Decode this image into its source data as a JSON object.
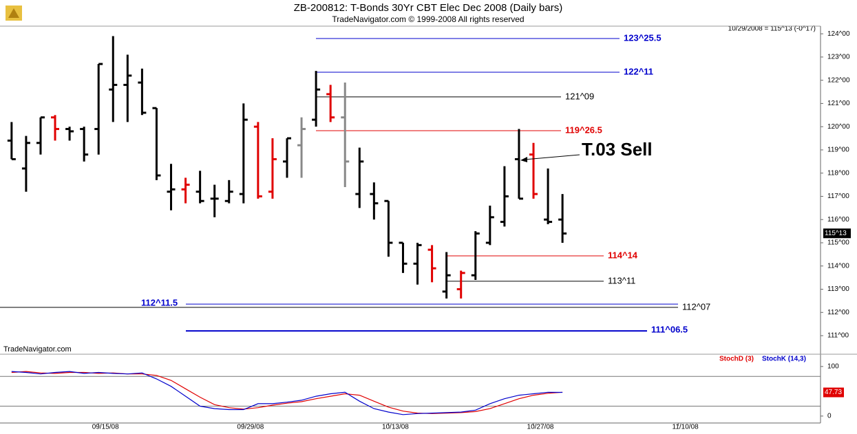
{
  "chart_data": [
    {
      "type": "ohlc",
      "title": "ZB-200812:  T-Bonds 30Yr CBT Elec Dec 2008  (Daily bars)",
      "subtitle": "TradeNavigator.com © 1999-2008 All rights reserved",
      "source": "TradeNavigator.com",
      "info": "10/29/2008 = 115^13 (-0^17)",
      "x": [
        0,
        1,
        2,
        3,
        4,
        5,
        6,
        7,
        8,
        9,
        10,
        11,
        12,
        13,
        14,
        15,
        16,
        17,
        18,
        19,
        20,
        21,
        22,
        23,
        24,
        25,
        26,
        27,
        28,
        29,
        30,
        31,
        32,
        33,
        34,
        35,
        36,
        37,
        38
      ],
      "open": [
        119.4,
        118.2,
        119.3,
        120.4,
        119.9,
        119.9,
        119.9,
        121.6,
        121.8,
        121.9,
        120.8,
        117.2,
        117.3,
        117.2,
        116.9,
        116.8,
        117.1,
        120.0,
        117.2,
        118.5,
        119.2,
        120.3,
        121.4,
        120.4,
        117.1,
        117.1,
        116.8,
        115.0,
        114.1,
        114.7,
        112.9,
        113.0,
        113.6,
        115.0,
        115.9,
        118.6,
        118.8,
        116.0,
        116.0
      ],
      "high": [
        120.2,
        119.6,
        120.4,
        120.5,
        120.0,
        120.0,
        122.7,
        123.9,
        123.1,
        122.5,
        120.8,
        118.4,
        117.8,
        118.1,
        117.5,
        117.7,
        121.0,
        120.2,
        119.5,
        119.5,
        120.4,
        122.4,
        121.8,
        121.9,
        119.1,
        117.6,
        116.8,
        115.0,
        115.0,
        114.9,
        114.6,
        113.8,
        115.5,
        116.6,
        118.3,
        119.9,
        119.3,
        118.2,
        117.1
      ],
      "low": [
        118.6,
        117.2,
        118.8,
        119.4,
        119.4,
        118.5,
        118.8,
        120.2,
        120.2,
        120.5,
        117.7,
        116.4,
        116.7,
        116.7,
        116.1,
        116.7,
        116.7,
        116.9,
        116.9,
        117.8,
        117.8,
        120.0,
        120.2,
        117.4,
        116.5,
        116.0,
        114.4,
        113.7,
        113.2,
        113.3,
        112.6,
        112.6,
        113.4,
        114.9,
        115.7,
        116.9,
        116.9,
        115.8,
        115.0
      ],
      "close": [
        118.6,
        119.3,
        120.4,
        119.9,
        119.8,
        118.8,
        122.7,
        121.8,
        122.2,
        120.6,
        117.9,
        117.3,
        117.5,
        116.8,
        116.9,
        117.2,
        120.3,
        117.0,
        118.6,
        119.5,
        119.9,
        121.6,
        120.4,
        118.5,
        118.5,
        116.7,
        115.0,
        114.1,
        114.9,
        113.9,
        113.6,
        113.7,
        115.4,
        116.1,
        117.0,
        116.9,
        117.1,
        115.9,
        115.4
      ],
      "colors": [
        "#000",
        "#000",
        "#000",
        "#e00000",
        "#000",
        "#000",
        "#000",
        "#000",
        "#000",
        "#000",
        "#000",
        "#000",
        "#e00000",
        "#000",
        "#000",
        "#000",
        "#000",
        "#e00000",
        "#e00000",
        "#000",
        "#888",
        "#000",
        "#e00000",
        "#888",
        "#000",
        "#000",
        "#000",
        "#000",
        "#000",
        "#e00000",
        "#000",
        "#e00000",
        "#000",
        "#000",
        "#000",
        "#000",
        "#e00000",
        "#000",
        "#000"
      ],
      "xlim": [
        -0.8,
        55.8
      ],
      "ylim": [
        110.26,
        124.33
      ],
      "yticks": [
        {
          "value": 111,
          "label": "111^00"
        },
        {
          "value": 112,
          "label": "112^00"
        },
        {
          "value": 113,
          "label": "113^00"
        },
        {
          "value": 114,
          "label": "114^00"
        },
        {
          "value": 115,
          "label": "115^00"
        },
        {
          "value": 116,
          "label": "116^00"
        },
        {
          "value": 117,
          "label": "117^00"
        },
        {
          "value": 118,
          "label": "118^00"
        },
        {
          "value": 119,
          "label": "119^00"
        },
        {
          "value": 120,
          "label": "120^00"
        },
        {
          "value": 121,
          "label": "121^00"
        },
        {
          "value": 122,
          "label": "122^00"
        },
        {
          "value": 123,
          "label": "123^00"
        },
        {
          "value": 124,
          "label": "124^00"
        }
      ],
      "last": {
        "value": 115.40625,
        "label": "115^13"
      },
      "levels": [
        {
          "value": 123.796875,
          "label": "123^25.5",
          "color": "#0000cc"
        },
        {
          "value": 122.34375,
          "label": "122^11",
          "color": "#0000cc"
        },
        {
          "value": 121.28125,
          "label": "121^09",
          "color": "#000000"
        },
        {
          "value": 119.828125,
          "label": "119^26.5",
          "color": "#e00000"
        },
        {
          "value": 114.4375,
          "label": "114^14",
          "color": "#e00000"
        },
        {
          "value": 113.34375,
          "label": "113^11",
          "color": "#000000"
        },
        {
          "value": 112.359375,
          "label": "112^11.5",
          "color": "#0000cc"
        },
        {
          "value": 112.21875,
          "label": "112^07",
          "color": "#000000"
        },
        {
          "value": 111.203125,
          "label": "111^06.5",
          "color": "#0000cc"
        }
      ],
      "annotation": "T.03 Sell"
    },
    {
      "type": "line",
      "x": [
        0,
        1,
        2,
        3,
        4,
        5,
        6,
        7,
        8,
        9,
        10,
        11,
        12,
        13,
        14,
        15,
        16,
        17,
        18,
        19,
        20,
        21,
        22,
        23,
        24,
        25,
        26,
        27,
        28,
        29,
        30,
        31,
        32,
        33,
        34,
        35,
        36,
        37,
        38
      ],
      "series": [
        {
          "name": "StochD (3)",
          "color": "#e00000",
          "values": [
            88,
            90,
            87,
            86,
            88,
            88,
            86,
            87,
            85,
            85,
            82,
            72,
            55,
            38,
            23,
            17,
            14,
            17,
            22,
            26,
            29,
            35,
            40,
            45,
            42,
            30,
            18,
            10,
            6,
            5,
            6,
            7,
            9,
            15,
            25,
            35,
            42,
            46,
            48
          ]
        },
        {
          "name": "StochK (14,3)",
          "color": "#0000cc",
          "values": [
            90,
            88,
            85,
            88,
            90,
            86,
            88,
            86,
            85,
            87,
            75,
            60,
            40,
            20,
            15,
            13,
            13,
            25,
            25,
            28,
            32,
            40,
            45,
            48,
            30,
            15,
            8,
            3,
            5,
            6,
            7,
            8,
            12,
            25,
            35,
            42,
            45,
            48,
            47.73
          ]
        }
      ],
      "xlim": [
        -0.8,
        55.8
      ],
      "ylim": [
        -14,
        122
      ],
      "yticks": [
        0,
        100
      ],
      "levels": [
        20,
        80
      ],
      "xticks": [
        {
          "value": 6,
          "label": "09/15/08"
        },
        {
          "value": 16,
          "label": "09/29/08"
        },
        {
          "value": 26,
          "label": "10/13/08"
        },
        {
          "value": 36,
          "label": "10/27/08"
        },
        {
          "value": 46,
          "label": "11/10/08"
        }
      ]
    }
  ]
}
